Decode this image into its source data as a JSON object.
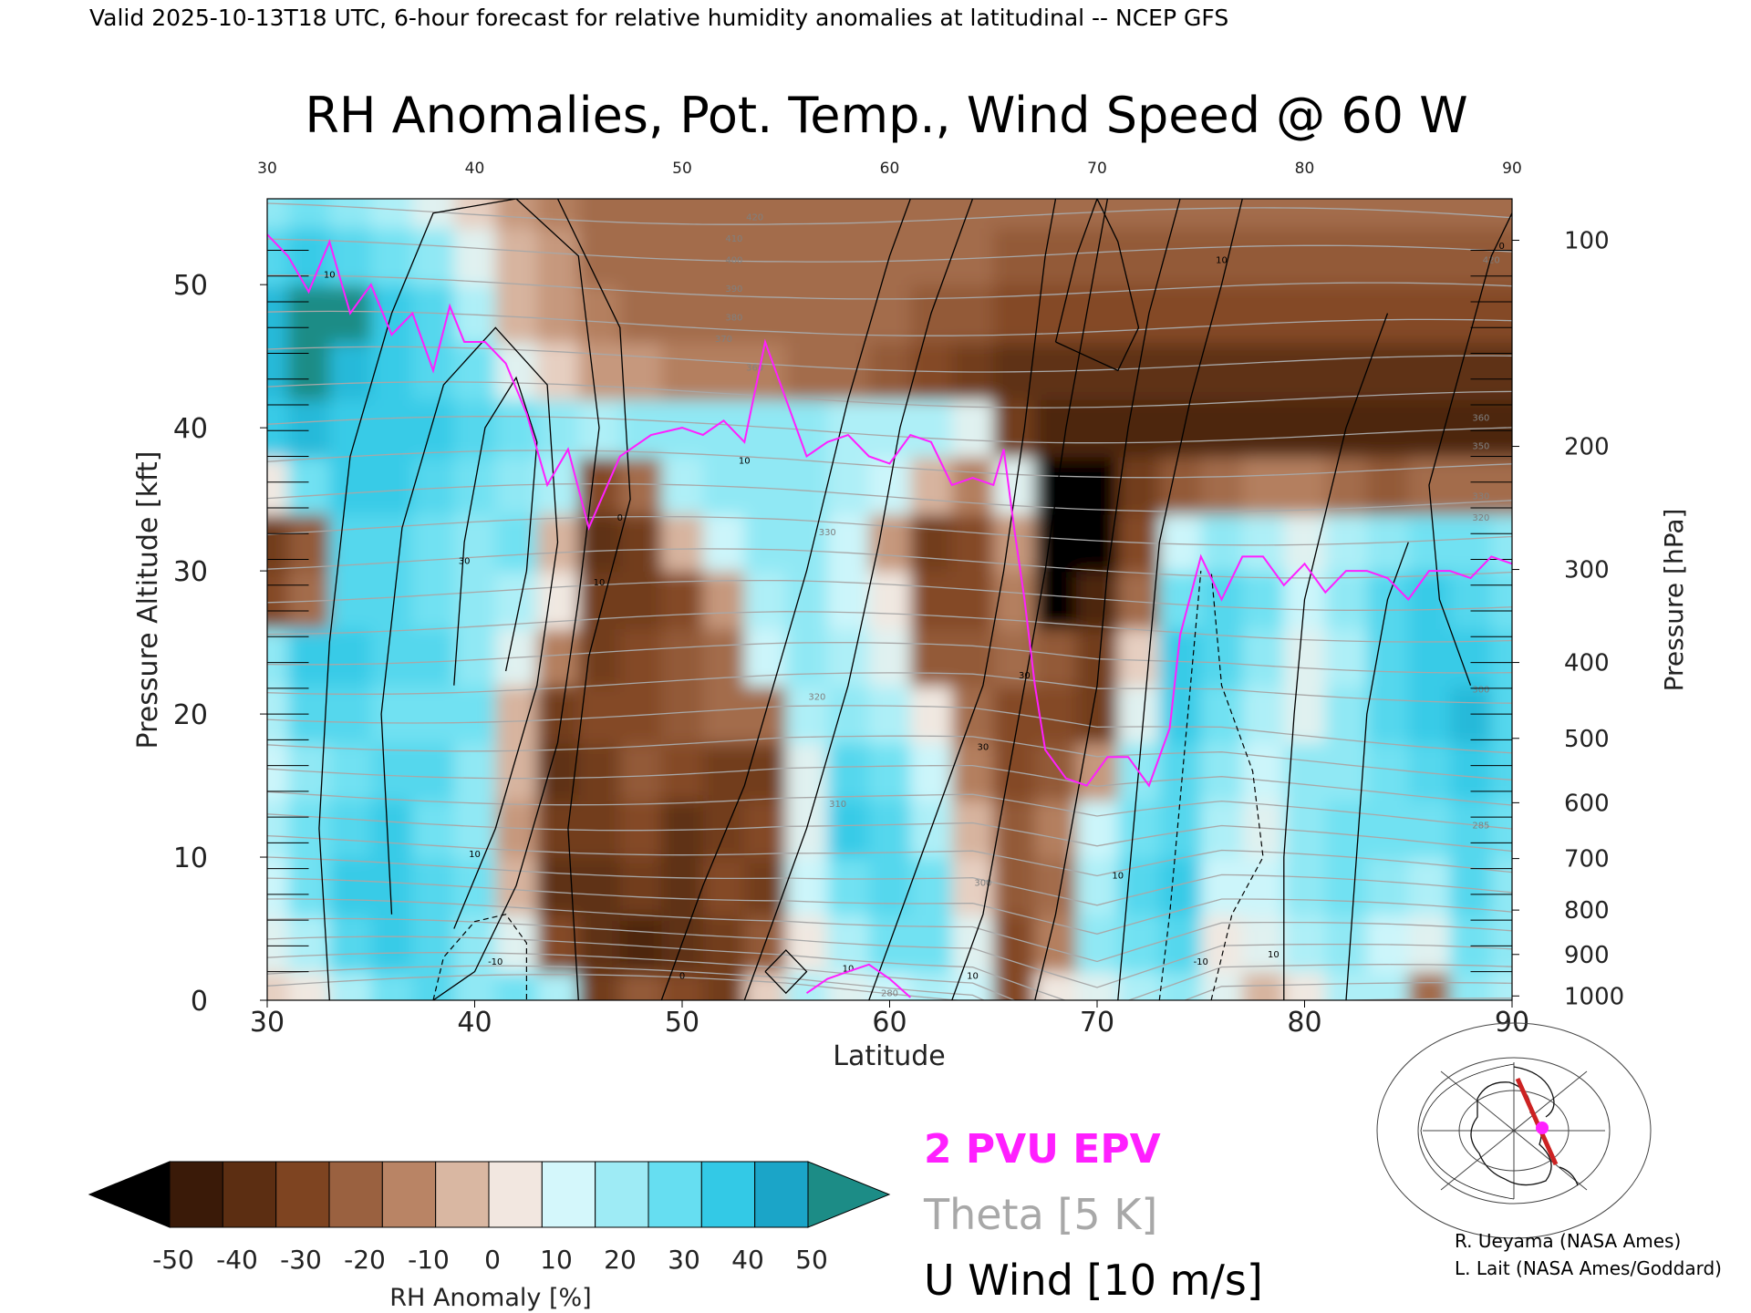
{
  "header": {
    "valid_line": "Valid 2025-10-13T18 UTC, 6-hour forecast for relative humidity anomalies at latitudinal -- NCEP GFS"
  },
  "chart_data": {
    "type": "heatmap",
    "title": "RH Anomalies, Pot. Temp., Wind Speed @ 60 W",
    "xlabel": "Latitude",
    "ylabel_left": "Pressure Altitude [kft]",
    "ylabel_right": "Pressure [hPa]",
    "xlim": [
      30,
      90
    ],
    "ylim": [
      0,
      56
    ],
    "x_ticks": [
      30,
      40,
      50,
      60,
      70,
      80,
      90
    ],
    "x_tick_labels": [
      "30",
      "40",
      "50",
      "60",
      "70",
      "80",
      "90"
    ],
    "y_ticks": [
      0,
      10,
      20,
      30,
      40,
      50
    ],
    "y_tick_labels": [
      "0",
      "10",
      "20",
      "30",
      "40",
      "50"
    ],
    "pressure_ticks": [
      {
        "label": "100",
        "kft": 53.1
      },
      {
        "label": "200",
        "kft": 38.7
      },
      {
        "label": "300",
        "kft": 30.1
      },
      {
        "label": "400",
        "kft": 23.6
      },
      {
        "label": "500",
        "kft": 18.3
      },
      {
        "label": "600",
        "kft": 13.8
      },
      {
        "label": "700",
        "kft": 9.9
      },
      {
        "label": "800",
        "kft": 6.3
      },
      {
        "label": "900",
        "kft": 3.2
      },
      {
        "label": "1000",
        "kft": 0.3
      }
    ],
    "rh_grid": {
      "lat": [
        30,
        32,
        34,
        36,
        38,
        40,
        42,
        44,
        46,
        48,
        50,
        52,
        54,
        56,
        58,
        60,
        62,
        64,
        66,
        68,
        70,
        72,
        74,
        76,
        78,
        80,
        82,
        84,
        86,
        88,
        90
      ],
      "kft": [
        0,
        4,
        8,
        12,
        16,
        20,
        24,
        28,
        32,
        36,
        40,
        44,
        48,
        52,
        56
      ],
      "values": [
        [
          0,
          5,
          20,
          30,
          35,
          25,
          30,
          20,
          -35,
          -25,
          -30,
          -35,
          0,
          20,
          10,
          15,
          20,
          15,
          -30,
          5,
          10,
          20,
          25,
          10,
          -5,
          5,
          20,
          20,
          -20,
          25,
          20
        ],
        [
          10,
          20,
          35,
          40,
          35,
          25,
          10,
          -30,
          -40,
          -45,
          -40,
          -35,
          -25,
          5,
          20,
          30,
          30,
          10,
          -30,
          -15,
          25,
          30,
          35,
          5,
          10,
          20,
          25,
          15,
          10,
          30,
          25
        ],
        [
          15,
          30,
          40,
          40,
          35,
          30,
          -5,
          -40,
          -40,
          -35,
          -40,
          -30,
          -35,
          15,
          30,
          35,
          30,
          0,
          -25,
          -20,
          20,
          35,
          40,
          15,
          15,
          25,
          30,
          25,
          20,
          35,
          25
        ],
        [
          20,
          30,
          35,
          40,
          30,
          25,
          -10,
          -35,
          -35,
          -30,
          -40,
          -35,
          -30,
          10,
          40,
          35,
          20,
          -5,
          -25,
          -15,
          15,
          30,
          35,
          20,
          10,
          25,
          30,
          30,
          30,
          35,
          30
        ],
        [
          15,
          25,
          30,
          35,
          35,
          25,
          -5,
          -40,
          -35,
          -25,
          -30,
          -35,
          -35,
          10,
          35,
          30,
          15,
          -15,
          -30,
          -25,
          -10,
          25,
          35,
          25,
          15,
          25,
          25,
          30,
          35,
          40,
          35
        ],
        [
          20,
          35,
          35,
          30,
          30,
          30,
          -5,
          -35,
          -30,
          -30,
          -25,
          -20,
          -20,
          20,
          25,
          20,
          5,
          -20,
          -30,
          -30,
          -35,
          10,
          40,
          30,
          20,
          10,
          25,
          35,
          40,
          45,
          35
        ],
        [
          25,
          40,
          40,
          35,
          35,
          25,
          10,
          -15,
          -35,
          -30,
          -25,
          -20,
          15,
          25,
          20,
          10,
          -25,
          -25,
          -20,
          -25,
          -35,
          0,
          40,
          35,
          25,
          10,
          20,
          35,
          40,
          40,
          35
        ],
        [
          -30,
          -20,
          35,
          35,
          30,
          25,
          20,
          5,
          -35,
          -35,
          -30,
          -10,
          20,
          25,
          15,
          5,
          -30,
          -30,
          -15,
          -50,
          -45,
          -20,
          30,
          35,
          30,
          15,
          25,
          35,
          40,
          35,
          30
        ],
        [
          -35,
          -25,
          35,
          35,
          30,
          25,
          30,
          -5,
          -40,
          -35,
          -5,
          15,
          25,
          25,
          15,
          -10,
          -35,
          -30,
          -10,
          -55,
          -55,
          -30,
          15,
          25,
          20,
          10,
          20,
          25,
          30,
          30,
          25
        ],
        [
          5,
          30,
          40,
          40,
          35,
          30,
          25,
          20,
          -30,
          -20,
          20,
          25,
          25,
          25,
          20,
          15,
          -5,
          -15,
          10,
          -55,
          -55,
          -35,
          -25,
          -20,
          -15,
          -15,
          -20,
          -25,
          -20,
          -20,
          -20
        ],
        [
          40,
          45,
          40,
          40,
          40,
          35,
          30,
          25,
          20,
          25,
          25,
          25,
          25,
          25,
          20,
          20,
          20,
          10,
          -35,
          -45,
          -45,
          -45,
          -45,
          -45,
          -45,
          -45,
          -45,
          -45,
          -45,
          -45,
          -45
        ],
        [
          45,
          50,
          45,
          40,
          35,
          30,
          10,
          0,
          -10,
          -10,
          -15,
          -15,
          -15,
          -20,
          -20,
          -25,
          -30,
          -35,
          -40,
          -40,
          -40,
          -40,
          -40,
          -40,
          -40,
          -40,
          -40,
          -40,
          -40,
          -40,
          -40
        ],
        [
          45,
          50,
          50,
          40,
          35,
          20,
          -5,
          -10,
          -15,
          -20,
          -20,
          -20,
          -20,
          -20,
          -20,
          -20,
          -25,
          -25,
          -30,
          -30,
          -30,
          -30,
          -30,
          -30,
          -30,
          -30,
          -30,
          -30,
          -30,
          -30,
          -30
        ],
        [
          35,
          40,
          35,
          30,
          25,
          10,
          -5,
          -10,
          -20,
          -20,
          -20,
          -20,
          -20,
          -20,
          -20,
          -20,
          -20,
          -20,
          -25,
          -25,
          -25,
          -25,
          -25,
          -25,
          -25,
          -25,
          -25,
          -25,
          -25,
          -25,
          -25
        ],
        [
          25,
          30,
          25,
          20,
          10,
          0,
          -10,
          -15,
          -20,
          -20,
          -20,
          -20,
          -20,
          -20,
          -20,
          -20,
          -20,
          -20,
          -20,
          -20,
          -20,
          -20,
          -20,
          -20,
          -20,
          -20,
          -20,
          -20,
          -20,
          -20,
          -20
        ]
      ]
    },
    "theta_levels": [
      280,
      285,
      290,
      295,
      300,
      305,
      310,
      315,
      320,
      325,
      330,
      335,
      340,
      345,
      350,
      355,
      360,
      365,
      370,
      375,
      380,
      385,
      390,
      395,
      400,
      405,
      410,
      415,
      420
    ],
    "theta_labels": [
      {
        "text": "280",
        "lat": 60,
        "kft": 0.3
      },
      {
        "text": "300",
        "lat": 64.5,
        "kft": 8
      },
      {
        "text": "310",
        "lat": 57.5,
        "kft": 13.5
      },
      {
        "text": "320",
        "lat": 56.5,
        "kft": 21
      },
      {
        "text": "330",
        "lat": 57,
        "kft": 32.5
      },
      {
        "text": "360",
        "lat": 53.5,
        "kft": 44
      },
      {
        "text": "370",
        "lat": 52,
        "kft": 46
      },
      {
        "text": "380",
        "lat": 52.5,
        "kft": 47.5
      },
      {
        "text": "390",
        "lat": 52.5,
        "kft": 49.5
      },
      {
        "text": "400",
        "lat": 52.5,
        "kft": 51.5
      },
      {
        "text": "410",
        "lat": 52.5,
        "kft": 53
      },
      {
        "text": "420",
        "lat": 53.5,
        "kft": 54.5
      },
      {
        "text": "350",
        "lat": 88.5,
        "kft": 38.5
      },
      {
        "text": "330",
        "lat": 88.5,
        "kft": 35
      },
      {
        "text": "320",
        "lat": 88.5,
        "kft": 33.5
      },
      {
        "text": "300",
        "lat": 88.5,
        "kft": 21.5
      },
      {
        "text": "285",
        "lat": 88.5,
        "kft": 12
      },
      {
        "text": "360",
        "lat": 88.5,
        "kft": 40.5
      },
      {
        "text": "420",
        "lat": 89,
        "kft": 51.5
      }
    ],
    "epv_2pvu": [
      [
        30,
        53.5
      ],
      [
        31,
        52
      ],
      [
        32,
        49.5
      ],
      [
        33,
        53
      ],
      [
        34,
        48
      ],
      [
        35,
        50
      ],
      [
        36,
        46.5
      ],
      [
        37,
        48
      ],
      [
        38,
        44
      ],
      [
        38.8,
        48.5
      ],
      [
        39.5,
        46
      ],
      [
        40.5,
        46
      ],
      [
        41.5,
        44.5
      ],
      [
        42.5,
        41
      ],
      [
        43.5,
        36
      ],
      [
        44.5,
        38.5
      ],
      [
        45.5,
        33
      ],
      [
        47,
        38
      ],
      [
        48.5,
        39.5
      ],
      [
        50,
        40
      ],
      [
        51,
        39.5
      ],
      [
        52,
        40.5
      ],
      [
        53,
        39
      ],
      [
        54,
        46
      ],
      [
        55,
        42
      ],
      [
        56,
        38
      ],
      [
        57,
        39
      ],
      [
        58,
        39.5
      ],
      [
        59,
        38
      ],
      [
        60,
        37.5
      ],
      [
        61,
        39.5
      ],
      [
        62,
        39
      ],
      [
        63,
        36
      ],
      [
        64,
        36.5
      ],
      [
        65,
        36
      ],
      [
        65.5,
        38.5
      ],
      [
        66,
        33
      ],
      [
        66.5,
        28
      ],
      [
        67,
        22
      ],
      [
        67.5,
        17.5
      ],
      [
        68.5,
        15.5
      ],
      [
        69.5,
        15
      ],
      [
        70.5,
        17
      ],
      [
        71.5,
        17
      ],
      [
        72.5,
        15
      ],
      [
        73.5,
        19
      ],
      [
        74,
        25.5
      ],
      [
        75,
        31
      ],
      [
        76,
        28
      ],
      [
        77,
        31
      ],
      [
        78,
        31
      ],
      [
        79,
        29
      ],
      [
        80,
        30.5
      ],
      [
        81,
        28.5
      ],
      [
        82,
        30
      ],
      [
        83,
        30
      ],
      [
        84,
        29.5
      ],
      [
        85,
        28
      ],
      [
        86,
        30
      ],
      [
        87,
        30
      ],
      [
        88,
        29.5
      ],
      [
        89,
        31
      ],
      [
        90,
        30.5
      ]
    ],
    "epv_2pvu_low": [
      [
        56,
        0.5
      ],
      [
        57,
        1.5
      ],
      [
        58,
        2
      ],
      [
        59,
        2.5
      ],
      [
        60,
        1.5
      ],
      [
        61,
        0.2
      ]
    ],
    "uwind_levels": [
      -10,
      0,
      10,
      20,
      30,
      40
    ],
    "uwind_labels": [
      {
        "text": "10",
        "lat": 33,
        "kft": 50.5
      },
      {
        "text": "30",
        "lat": 39.5,
        "kft": 30.5
      },
      {
        "text": "10",
        "lat": 40,
        "kft": 10
      },
      {
        "text": "10",
        "lat": 46,
        "kft": 29
      },
      {
        "text": "0",
        "lat": 47,
        "kft": 33.5
      },
      {
        "text": "10",
        "lat": 53,
        "kft": 37.5
      },
      {
        "text": "30",
        "lat": 66.5,
        "kft": 22.5
      },
      {
        "text": "30",
        "lat": 64.5,
        "kft": 17.5
      },
      {
        "text": "10",
        "lat": 71,
        "kft": 8.5
      },
      {
        "text": "-10",
        "lat": 75,
        "kft": 2.5
      },
      {
        "text": "10",
        "lat": 78.5,
        "kft": 3
      },
      {
        "text": "10",
        "lat": 76,
        "kft": 51.5
      },
      {
        "text": "0",
        "lat": 89.5,
        "kft": 52.5
      },
      {
        "text": "10",
        "lat": 58,
        "kft": 2
      },
      {
        "text": "10",
        "lat": 64,
        "kft": 1.5
      },
      {
        "text": "0",
        "lat": 50,
        "kft": 1.5
      },
      {
        "text": "-10",
        "lat": 41,
        "kft": 2.5
      }
    ]
  },
  "colorbar": {
    "ticks": [
      "-50",
      "-40",
      "-30",
      "-20",
      "-10",
      "0",
      "10",
      "20",
      "30",
      "40",
      "50"
    ],
    "label": "RH Anomaly [%]",
    "colors": [
      "#3a1a08",
      "#5c2e12",
      "#7e4421",
      "#9a6140",
      "#b98465",
      "#d9b7a2",
      "#f2e7e0",
      "#d4f7fb",
      "#9eebf5",
      "#66def1",
      "#33c9e6",
      "#1ba5c8"
    ],
    "low_color": "#000000",
    "high_color": "#1c8c86"
  },
  "legend": {
    "epv": {
      "label": "2 PVU EPV",
      "color": "#ff1fff"
    },
    "theta": {
      "label": "Theta [5 K]",
      "color": "#a8a8a8"
    },
    "wind": {
      "label": "U Wind [10 m/s]",
      "color": "#000000"
    }
  },
  "inset_map": {
    "description_icon": "polar-map-icon",
    "transect_color": "#cc2222",
    "marker_color": "#ff22ff"
  },
  "credits": {
    "line1": "R. Ueyama (NASA Ames)",
    "line2": "L. Lait (NASA Ames/Goddard)"
  }
}
